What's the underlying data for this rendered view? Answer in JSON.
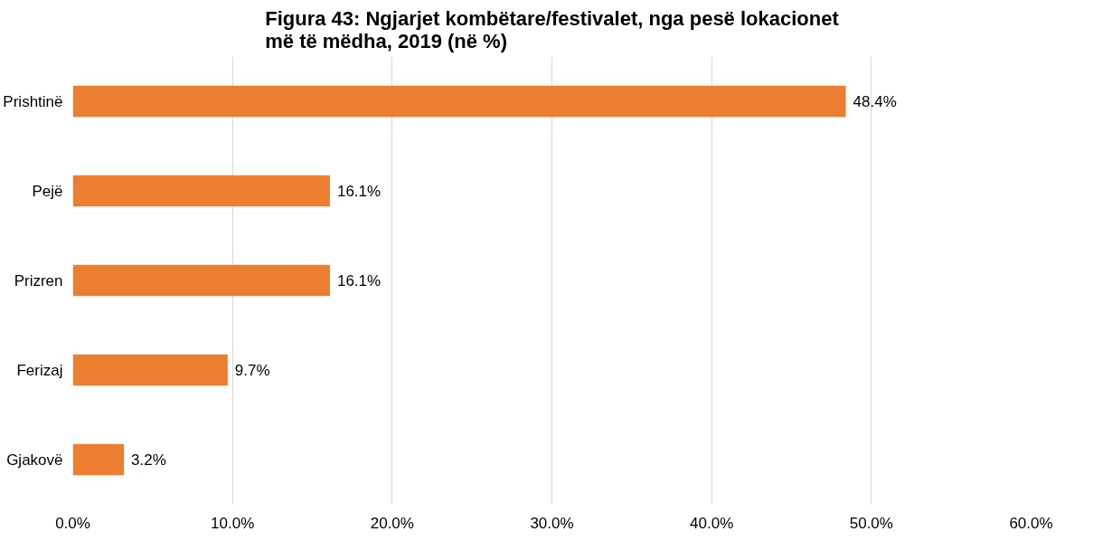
{
  "chart_data": {
    "type": "bar",
    "orientation": "horizontal",
    "title": "Figura 43: Ngjarjet kombëtare/festivalet, nga pesë lokacionet më të mëdha, 2019 (në %)",
    "categories": [
      "Prishtinë",
      "Pejë",
      "Prizren",
      "Ferizaj",
      "Gjakovë"
    ],
    "values": [
      48.4,
      16.1,
      16.1,
      9.7,
      3.2
    ],
    "value_labels": [
      "48.4%",
      "16.1%",
      "16.1%",
      "9.7%",
      "3.2%"
    ],
    "color": "#ed7d31",
    "xlim": [
      0,
      60
    ],
    "xticks": [
      {
        "value": 0,
        "label": "0.0%"
      },
      {
        "value": 10,
        "label": "10.0%"
      },
      {
        "value": 20,
        "label": "20.0%"
      },
      {
        "value": 30,
        "label": "30.0%"
      },
      {
        "value": 40,
        "label": "40.0%"
      },
      {
        "value": 50,
        "label": "50.0%"
      },
      {
        "value": 60,
        "label": "60.0%"
      }
    ],
    "grid": "x"
  }
}
